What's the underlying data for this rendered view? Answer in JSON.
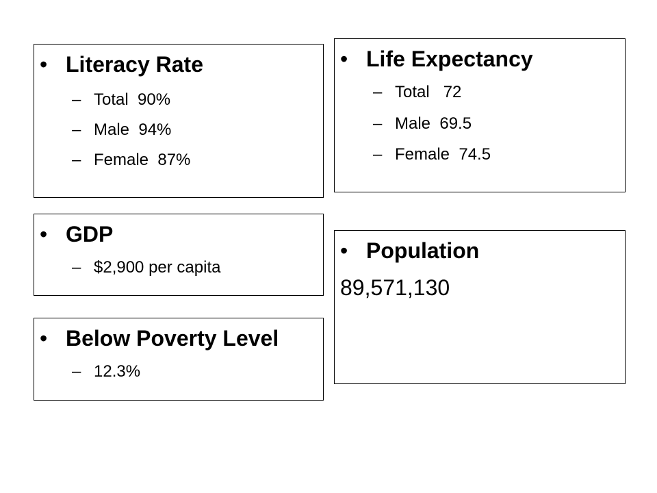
{
  "bullet_glyph": "•",
  "dash_glyph": "–",
  "literacy": {
    "heading": "Literacy Rate",
    "items": [
      "Total  90%",
      "Male  94%",
      "Female  87%"
    ]
  },
  "life_expectancy": {
    "heading": "Life Expectancy",
    "items": [
      "Total   72",
      "Male  69.5",
      "Female  74.5"
    ]
  },
  "gdp": {
    "heading": "GDP",
    "items": [
      "$2,900 per capita"
    ]
  },
  "population": {
    "heading": "Population",
    "value": "89,571,130"
  },
  "poverty": {
    "heading": "Below Poverty Level",
    "items": [
      "12.3%"
    ]
  }
}
